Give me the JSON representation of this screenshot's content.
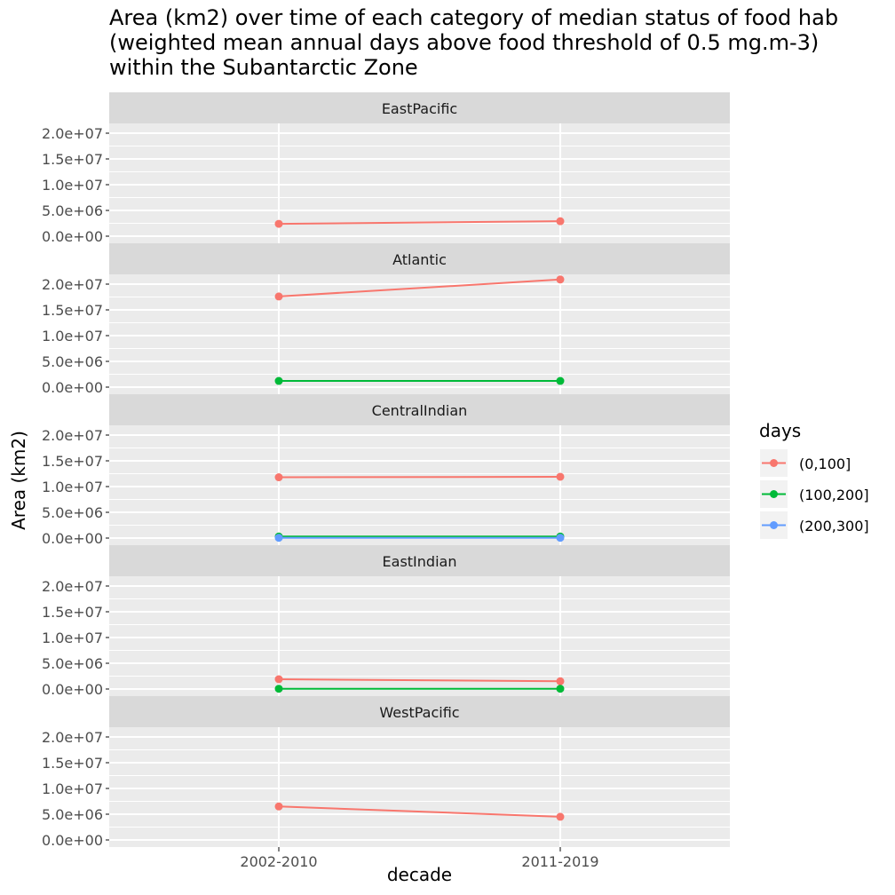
{
  "title_lines": [
    "Area (km2) over time of each category of median status of food hab",
    "(weighted mean annual days above food threshold of 0.5 mg.m-3)",
    "within the Subantarctic Zone"
  ],
  "chart_data": {
    "type": "line",
    "title": "Area (km2) over time of each category of median status of food hab (weighted mean annual days above food threshold of 0.5 mg.m-3) within the Subantarctic Zone",
    "xlabel": "decade",
    "ylabel": "Area (km2)",
    "x": [
      "2002-2010",
      "2011-2019"
    ],
    "ylim": [
      0,
      20000000
    ],
    "yticks": [
      0,
      5000000,
      10000000,
      15000000,
      20000000
    ],
    "ytick_labels": [
      "0.0e+00",
      "5.0e+06",
      "1.0e+07",
      "1.5e+07",
      "2.0e+07"
    ],
    "grid": true,
    "legend": {
      "title": "days",
      "position": "right",
      "entries": [
        {
          "name": "(0,100]",
          "color": "#F8766D"
        },
        {
          "name": "(100,200]",
          "color": "#00BA38"
        },
        {
          "name": "(200,300]",
          "color": "#619CFF"
        }
      ]
    },
    "panels": [
      {
        "name": "EastPacific",
        "series": [
          {
            "name": "(0,100]",
            "values": [
              2400000,
              2900000
            ]
          }
        ]
      },
      {
        "name": "Atlantic",
        "series": [
          {
            "name": "(0,100]",
            "values": [
              17600000,
              20900000
            ]
          },
          {
            "name": "(100,200]",
            "values": [
              1200000,
              1200000
            ]
          }
        ]
      },
      {
        "name": "CentralIndian",
        "series": [
          {
            "name": "(0,100]",
            "values": [
              11800000,
              11900000
            ]
          },
          {
            "name": "(100,200]",
            "values": [
              300000,
              300000
            ]
          },
          {
            "name": "(200,300]",
            "values": [
              50000,
              50000
            ]
          }
        ]
      },
      {
        "name": "EastIndian",
        "series": [
          {
            "name": "(0,100]",
            "values": [
              1900000,
              1500000
            ]
          },
          {
            "name": "(100,200]",
            "values": [
              50000,
              50000
            ]
          }
        ]
      },
      {
        "name": "WestPacific",
        "series": [
          {
            "name": "(0,100]",
            "values": [
              6500000,
              4500000
            ]
          }
        ]
      }
    ]
  }
}
